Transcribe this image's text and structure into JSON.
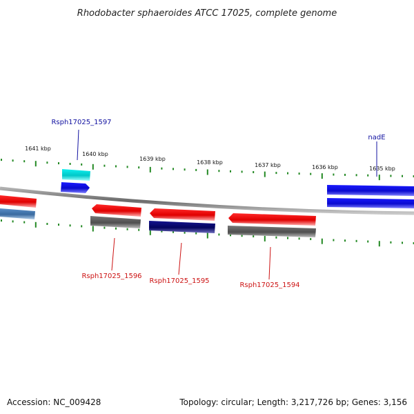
{
  "title": "Rhodobacter sphaeroides ATCC 17025, complete genome",
  "footer": {
    "accession": "Accession: NC_009428",
    "summary": "Topology: circular; Length: 3,217,726 bp; Genes: 3,156"
  },
  "ticks": [
    "1641 kbp",
    "1640 kbp",
    "1639 kbp",
    "1638 kbp",
    "1637 kbp",
    "1636 kbp",
    "1635 kbp"
  ],
  "gene_labels": {
    "rsph1597": "Rsph17025_1597",
    "nadE": "nadE",
    "rsph1596": "Rsph17025_1596",
    "rsph1595": "Rsph17025_1595",
    "rsph1594": "Rsph17025_1594"
  },
  "colors": {
    "forward_track": "#1010e0",
    "forward_rna": "#00dcdc",
    "reverse_red": "#ee1111",
    "reverse_gray": "#666666",
    "reverse_navy": "#0a0a80",
    "steelblue": "#4a7fb8",
    "tick_green": "#228822",
    "backbone": "#8a8a8a",
    "label_blue": "#1010a0",
    "label_red": "#cc1111"
  }
}
